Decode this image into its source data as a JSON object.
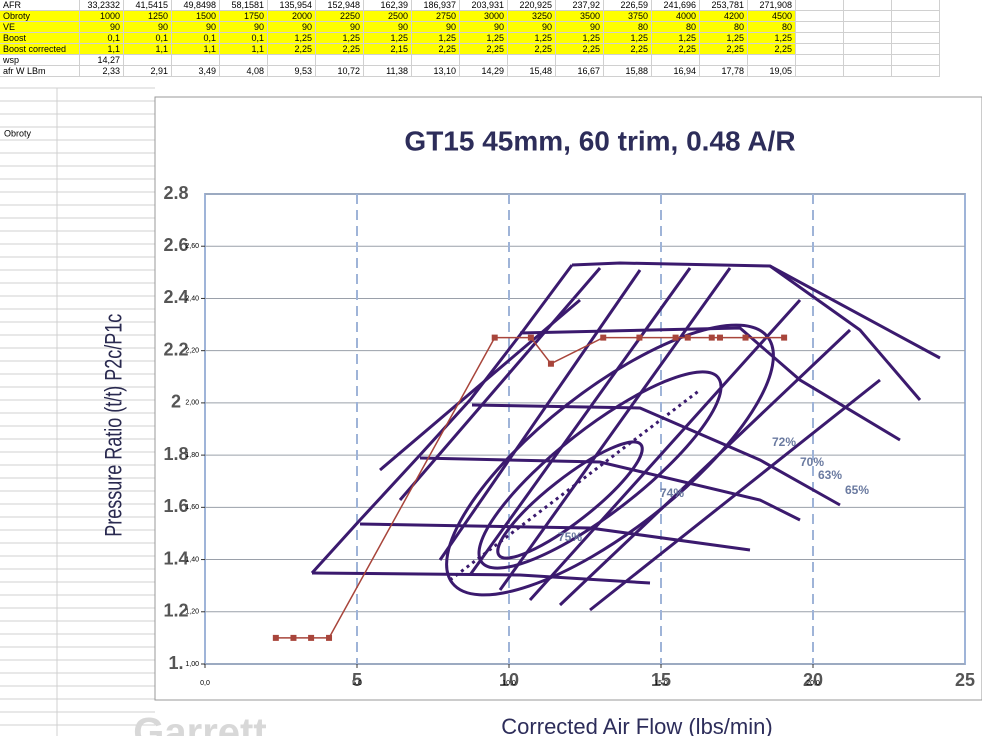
{
  "sheet": {
    "rows": [
      {
        "label": "AFR",
        "cells": [
          "33,2332",
          "41,5415",
          "49,8498",
          "58,1581",
          "135,954",
          "152,948",
          "162,39",
          "186,937",
          "203,931",
          "220,925",
          "237,92",
          "226,59",
          "241,696",
          "253,781",
          "271,908"
        ]
      },
      {
        "label": "Obroty",
        "cells": [
          "1000",
          "1250",
          "1500",
          "1750",
          "2000",
          "2250",
          "2500",
          "2750",
          "3000",
          "3250",
          "3500",
          "3750",
          "4000",
          "4200",
          "4500"
        ],
        "highlight": true
      },
      {
        "label": "VE",
        "cells": [
          "90",
          "90",
          "90",
          "90",
          "90",
          "90",
          "90",
          "90",
          "90",
          "90",
          "90",
          "80",
          "80",
          "80",
          "80"
        ],
        "highlight": true
      },
      {
        "label": "Boost",
        "cells": [
          "0,1",
          "0,1",
          "0,1",
          "0,1",
          "1,25",
          "1,25",
          "1,25",
          "1,25",
          "1,25",
          "1,25",
          "1,25",
          "1,25",
          "1,25",
          "1,25",
          "1,25"
        ],
        "highlight": true
      },
      {
        "label": "Boost corrected",
        "cells": [
          "1,1",
          "1,1",
          "1,1",
          "1,1",
          "2,25",
          "2,25",
          "2,15",
          "2,25",
          "2,25",
          "2,25",
          "2,25",
          "2,25",
          "2,25",
          "2,25",
          "2,25"
        ],
        "highlight": true
      },
      {
        "label": "wsp",
        "cells": [
          "14,27"
        ]
      },
      {
        "label": "afr W LBm",
        "cells": [
          "2,33",
          "2,91",
          "3,49",
          "4,08",
          "9,53",
          "10,72",
          "11,38",
          "13,10",
          "14,29",
          "15,48",
          "16,67",
          "15,88",
          "16,94",
          "17,78",
          "19,05"
        ]
      }
    ],
    "note": "Obroty"
  },
  "map": {
    "title": "GT15 45mm, 60 trim, 0.48 A/R",
    "y_label": "Pressure Ratio (t/t) P2c/P1c",
    "x_label": "Corrected Air Flow (lbs/min)",
    "yticks": [
      {
        "value": 1,
        "label": "1."
      },
      1.2,
      1.4,
      1.6,
      1.8,
      2,
      2.2,
      2.4,
      2.6,
      2.8
    ],
    "xticks": [
      5,
      10,
      15,
      20,
      25
    ],
    "efficiency_labels": [
      "72%",
      "70%",
      "63%",
      "65%",
      "74%",
      "75%"
    ],
    "logo": "Garrett"
  },
  "chart_data": {
    "type": "line",
    "series": [
      {
        "color": "#a8453b",
        "x": [
          2.33,
          2.91,
          3.49,
          4.08,
          9.53,
          10.72,
          11.38,
          13.1,
          14.29,
          15.48,
          16.67,
          15.88,
          16.94,
          17.78,
          19.05
        ],
        "values": [
          1.1,
          1.1,
          1.1,
          1.1,
          2.25,
          2.25,
          2.15,
          2.25,
          2.25,
          2.25,
          2.25,
          2.25,
          2.25,
          2.25,
          2.25
        ]
      }
    ],
    "xlim": [
      0,
      25
    ],
    "ylim": [
      1,
      2.8
    ],
    "xticks": [
      {
        "value": 0,
        "label": "0,0"
      },
      {
        "value": 5,
        "label": "5,0"
      },
      {
        "value": 10,
        "label": "10,0"
      },
      {
        "value": 15,
        "label": "15,0"
      },
      {
        "value": 20,
        "label": "20,0"
      }
    ],
    "yticks": [
      {
        "value": 1,
        "label": "1,00"
      },
      {
        "value": 1.2,
        "label": "1,20"
      },
      {
        "value": 1.4,
        "label": "1,40"
      },
      {
        "value": 1.6,
        "label": "1,60"
      },
      {
        "value": 1.8,
        "label": "1,80"
      },
      {
        "value": 2,
        "label": "2,00"
      },
      {
        "value": 2.2,
        "label": "2,20"
      },
      {
        "value": 2.4,
        "label": "2,40"
      },
      {
        "value": 2.6,
        "label": "2,60"
      }
    ]
  }
}
